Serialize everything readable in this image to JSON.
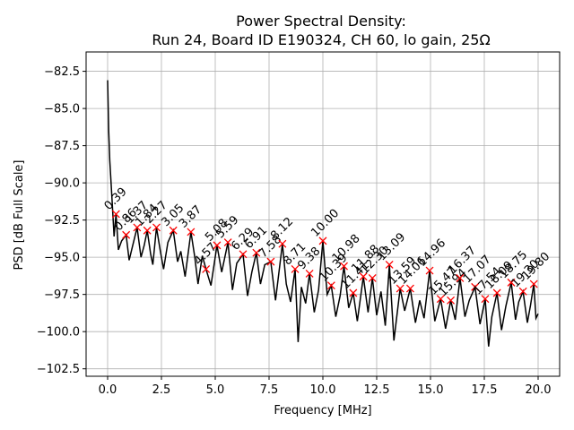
{
  "chart_data": {
    "type": "line",
    "title": "Power Spectral Density:",
    "subtitle": "Run 24, Board ID E190324, CH 60, lo gain, 25Ω",
    "xlabel": "Frequency [MHz]",
    "ylabel": "PSD [dB Full Scale]",
    "xlim": [
      -1.0,
      21.0
    ],
    "ylim": [
      -103.0,
      -81.2
    ],
    "xticks": [
      {
        "value": 0,
        "label": "0.0"
      },
      {
        "value": 2.5,
        "label": "2.5"
      },
      {
        "value": 5,
        "label": "5.0"
      },
      {
        "value": 7.5,
        "label": "7.5"
      },
      {
        "value": 10,
        "label": "10.0"
      },
      {
        "value": 12.5,
        "label": "12.5"
      },
      {
        "value": 15,
        "label": "15.0"
      },
      {
        "value": 17.5,
        "label": "17.5"
      },
      {
        "value": 20,
        "label": "20.0"
      }
    ],
    "yticks": [
      {
        "value": -82.5,
        "label": "−82.5"
      },
      {
        "value": -85,
        "label": "−85.0"
      },
      {
        "value": -87.5,
        "label": "−87.5"
      },
      {
        "value": -90,
        "label": "−90.0"
      },
      {
        "value": -92.5,
        "label": "−92.5"
      },
      {
        "value": -95,
        "label": "−95.0"
      },
      {
        "value": -97.5,
        "label": "−97.5"
      },
      {
        "value": -100,
        "label": "−100.0"
      },
      {
        "value": -102.5,
        "label": "−102.5"
      }
    ],
    "grid": true,
    "line": {
      "color": "#000000",
      "x": [
        0,
        0.05,
        0.1,
        0.2,
        0.3,
        0.39,
        0.5,
        0.65,
        0.86,
        1.0,
        1.15,
        1.37,
        1.55,
        1.7,
        1.84,
        2.0,
        2.1,
        2.27,
        2.45,
        2.6,
        2.8,
        3.05,
        3.25,
        3.4,
        3.6,
        3.87,
        4.05,
        4.2,
        4.4,
        4.57,
        4.8,
        5.08,
        5.3,
        5.59,
        5.8,
        6.0,
        6.29,
        6.5,
        6.7,
        6.91,
        7.1,
        7.3,
        7.58,
        7.8,
        8.12,
        8.3,
        8.5,
        8.71,
        8.85,
        9.0,
        9.2,
        9.38,
        9.6,
        9.8,
        10.0,
        10.2,
        10.39,
        10.6,
        10.8,
        10.98,
        11.2,
        11.41,
        11.6,
        11.88,
        12.1,
        12.3,
        12.5,
        12.7,
        12.9,
        13.09,
        13.3,
        13.59,
        13.8,
        14.06,
        14.3,
        14.5,
        14.7,
        14.96,
        15.2,
        15.47,
        15.7,
        15.94,
        16.15,
        16.37,
        16.6,
        16.8,
        17.07,
        17.3,
        17.54,
        17.7,
        17.85,
        18.09,
        18.3,
        18.5,
        18.75,
        18.95,
        19.1,
        19.3,
        19.5,
        19.65,
        19.8,
        19.9,
        20.0
      ],
      "y": [
        -83.1,
        -86.5,
        -88.5,
        -91.0,
        -93.6,
        -92.1,
        -94.5,
        -93.9,
        -93.5,
        -95.2,
        -94.3,
        -93.0,
        -95.0,
        -94.2,
        -93.2,
        -94.8,
        -95.5,
        -93.0,
        -94.6,
        -95.8,
        -94.0,
        -93.2,
        -95.3,
        -94.6,
        -96.3,
        -93.3,
        -95.0,
        -96.8,
        -94.9,
        -95.8,
        -96.9,
        -94.2,
        -96.0,
        -94.0,
        -97.2,
        -95.4,
        -94.8,
        -97.6,
        -96.0,
        -94.7,
        -96.8,
        -95.5,
        -95.3,
        -97.9,
        -94.1,
        -96.8,
        -98.0,
        -95.8,
        -100.7,
        -97.0,
        -98.1,
        -96.1,
        -98.7,
        -97.2,
        -93.9,
        -97.5,
        -96.9,
        -99.0,
        -97.6,
        -95.6,
        -98.4,
        -97.4,
        -99.3,
        -96.3,
        -98.7,
        -96.4,
        -98.9,
        -97.3,
        -99.6,
        -95.5,
        -100.6,
        -97.1,
        -98.6,
        -97.1,
        -99.4,
        -97.9,
        -99.1,
        -95.9,
        -99.3,
        -97.8,
        -99.8,
        -97.9,
        -99.2,
        -96.4,
        -99.0,
        -97.9,
        -97.0,
        -99.5,
        -97.8,
        -101.0,
        -99.0,
        -97.4,
        -99.9,
        -98.3,
        -96.7,
        -99.2,
        -98.0,
        -97.3,
        -99.4,
        -98.2,
        -96.8,
        -99.1,
        -98.8
      ]
    },
    "peaks": {
      "color": "#ff0000",
      "x": [
        0.39,
        0.86,
        1.37,
        1.84,
        2.27,
        3.05,
        3.87,
        4.57,
        5.08,
        5.59,
        6.29,
        6.91,
        7.58,
        8.12,
        8.71,
        9.38,
        10.0,
        10.39,
        10.98,
        11.41,
        11.88,
        12.3,
        13.09,
        13.59,
        14.06,
        14.96,
        15.47,
        15.94,
        16.37,
        17.07,
        17.54,
        18.09,
        18.75,
        19.3,
        19.8
      ],
      "x_labels": [
        "0.39",
        "0.86",
        "1.37",
        "1.84",
        "2.27",
        "3.05",
        "3.87",
        "4.57",
        "5.08",
        "5.59",
        "6.29",
        "6.91",
        "7.58",
        "8.12",
        "8.71",
        "9.38",
        "10.00",
        "10.39",
        "10.98",
        "11.41",
        "11.88",
        "12.30",
        "13.09",
        "13.59",
        "14.06",
        "14.96",
        "15.47",
        "15.94",
        "16.37",
        "17.07",
        "17.54",
        "18.09",
        "18.75",
        "19.30",
        "19.80"
      ],
      "y": [
        -92.1,
        -93.5,
        -93.0,
        -93.2,
        -93.0,
        -93.2,
        -93.3,
        -95.8,
        -94.2,
        -94.0,
        -94.8,
        -94.7,
        -95.3,
        -94.1,
        -95.8,
        -96.1,
        -93.9,
        -96.9,
        -95.6,
        -97.4,
        -96.3,
        -96.4,
        -95.5,
        -97.1,
        -97.1,
        -95.9,
        -97.8,
        -97.9,
        -96.4,
        -97.0,
        -97.8,
        -97.4,
        -96.7,
        -97.3,
        -96.8
      ]
    }
  }
}
